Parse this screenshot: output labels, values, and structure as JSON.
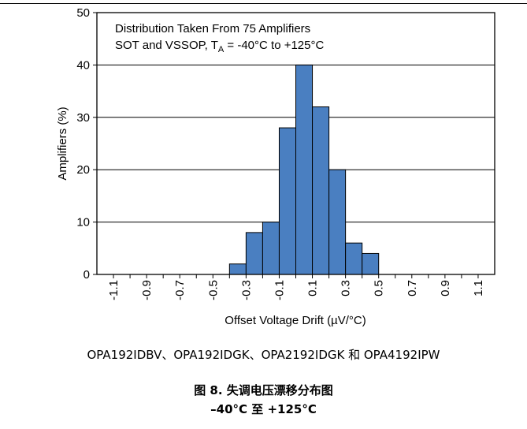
{
  "chart_data": {
    "type": "bar",
    "categories": [
      "-1.1",
      "-1",
      "-0.9",
      "-0.8",
      "-0.7",
      "-0.6",
      "-0.5",
      "-0.4",
      "-0.3",
      "-0.2",
      "-0.1",
      "0",
      "0.1",
      "0.2",
      "0.3",
      "0.4",
      "0.5",
      "0.6",
      "0.7",
      "0.8",
      "0.9",
      "1",
      "1.1"
    ],
    "bins": [
      {
        "lo": -0.4,
        "hi": -0.3,
        "value": 2
      },
      {
        "lo": -0.3,
        "hi": -0.2,
        "value": 8
      },
      {
        "lo": -0.2,
        "hi": -0.1,
        "value": 10
      },
      {
        "lo": -0.1,
        "hi": 0.0,
        "value": 28
      },
      {
        "lo": 0.0,
        "hi": 0.1,
        "value": 40
      },
      {
        "lo": 0.1,
        "hi": 0.2,
        "value": 32
      },
      {
        "lo": 0.2,
        "hi": 0.3,
        "value": 20
      },
      {
        "lo": 0.3,
        "hi": 0.4,
        "value": 6
      },
      {
        "lo": 0.4,
        "hi": 0.5,
        "value": 4
      }
    ],
    "xlim": [
      -1.2,
      1.2
    ],
    "ylim": [
      0,
      50
    ],
    "xticks": [
      -1.1,
      -0.9,
      -0.7,
      -0.5,
      -0.3,
      -0.1,
      0.1,
      0.3,
      0.5,
      0.7,
      0.9,
      1.1
    ],
    "xtick_labels": [
      "-1.1",
      "-0.9",
      "-0.7",
      "-0.5",
      "-0.3",
      "-0.1",
      "0.1",
      "0.3",
      "0.5",
      "0.7",
      "0.9",
      "1.1"
    ],
    "yticks": [
      0,
      10,
      20,
      30,
      40,
      50
    ],
    "ytick_labels": [
      "0",
      "10",
      "20",
      "30",
      "40",
      "50"
    ],
    "xlabel": "Offset Voltage Drift (µV/°C)",
    "ylabel": "Amplifiers (%)",
    "annotation_line1": "Distribution Taken From 75 Amplifiers",
    "annotation_line2_pre": "SOT and VSSOP, T",
    "annotation_line2_sub": "A",
    "annotation_line2_post": " = -40°C to +125°C",
    "bar_color": "#4a7fc1",
    "grid": "horizontal",
    "legend": "none"
  },
  "caption": {
    "parts": "OPA192IDBV、OPA192IDGK、OPA2192IDGK 和 OPA4192IPW",
    "figure": "图 8. 失调电压漂移分布图",
    "range": "–40°C 至 +125°C"
  }
}
